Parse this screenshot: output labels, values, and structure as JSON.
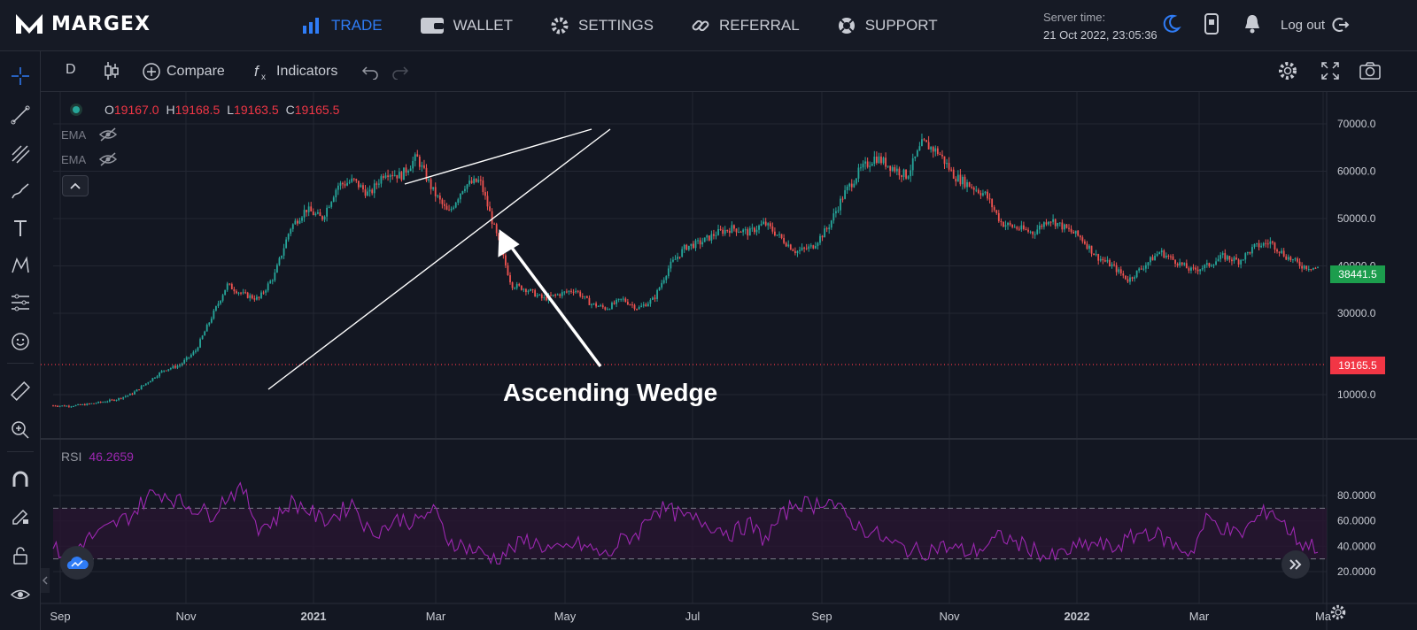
{
  "brand": {
    "name": "MARGEX"
  },
  "nav": [
    {
      "label": "TRADE",
      "icon": "bar-chart-icon",
      "active": true
    },
    {
      "label": "WALLET",
      "icon": "wallet-icon",
      "active": false
    },
    {
      "label": "SETTINGS",
      "icon": "gear-icon",
      "active": false
    },
    {
      "label": "REFERRAL",
      "icon": "link-icon",
      "active": false
    },
    {
      "label": "SUPPORT",
      "icon": "lifebuoy-icon",
      "active": false
    }
  ],
  "server": {
    "label": "Server time:",
    "time": "21 Oct 2022, 23:05:36"
  },
  "header_right": {
    "logout": "Log out"
  },
  "toolbar": {
    "interval": "D",
    "compare": "Compare",
    "indicators": "Indicators"
  },
  "legend": {
    "o_key": "O",
    "o_val": "19167.0",
    "h_key": "H",
    "h_val": "19168.5",
    "l_key": "L",
    "l_val": "19163.5",
    "c_key": "C",
    "c_val": "19165.5"
  },
  "indicators": [
    "EMA",
    "EMA"
  ],
  "rsi": {
    "label": "RSI",
    "value": "46.2659"
  },
  "price_tags": {
    "last": "38441.5",
    "current": "19165.5"
  },
  "annotation": "Ascending Wedge",
  "colors": {
    "accent": "#2f7cf6",
    "up": "#26a69a",
    "down": "#ef5350",
    "rsi": "#9c27b0",
    "last_tag": "#1c9d4d",
    "current_tag": "#f23645"
  },
  "chart_data": {
    "type": "candlestick",
    "price_axis_ticks": [
      "70000.0",
      "60000.0",
      "50000.0",
      "40000.0",
      "30000.0",
      "10000.0"
    ],
    "rsi_axis_ticks": [
      "80.0000",
      "60.0000",
      "40.0000",
      "20.0000"
    ],
    "x_ticks": [
      "Sep",
      "Nov",
      "2021",
      "Mar",
      "May",
      "Jul",
      "Sep",
      "Nov",
      "2022",
      "Mar",
      "Ma"
    ],
    "price_path": [
      10500,
      10400,
      10700,
      11200,
      11800,
      13000,
      15500,
      18000,
      19000,
      22000,
      29000,
      36000,
      34000,
      33000,
      38000,
      48000,
      52000,
      50000,
      57000,
      58000,
      55000,
      60000,
      59000,
      63000,
      56000,
      51000,
      57000,
      58000,
      47000,
      36000,
      35000,
      33000,
      34000,
      35000,
      32000,
      31000,
      33000,
      31000,
      33000,
      40000,
      44000,
      45000,
      47000,
      48000,
      47000,
      49000,
      46000,
      43000,
      44000,
      48000,
      55000,
      60000,
      63000,
      61000,
      59000,
      66000,
      64000,
      59000,
      57000,
      55000,
      49000,
      48000,
      47000,
      50000,
      48000,
      46000,
      42000,
      40000,
      37000,
      40000,
      43000,
      41000,
      39000,
      40000,
      42000,
      41000,
      44000,
      45000,
      42000,
      40000,
      39500
    ],
    "rsi_path": [
      38,
      32,
      45,
      50,
      58,
      65,
      80,
      82,
      75,
      70,
      65,
      80,
      85,
      55,
      60,
      75,
      70,
      60,
      65,
      75,
      50,
      55,
      62,
      58,
      70,
      45,
      40,
      35,
      30,
      38,
      45,
      40,
      35,
      42,
      38,
      32,
      45,
      50,
      70,
      68,
      62,
      60,
      55,
      50,
      58,
      45,
      62,
      75,
      72,
      78,
      65,
      55,
      50,
      42,
      38,
      35,
      40,
      38,
      35,
      40,
      48,
      42,
      38,
      30,
      35,
      40,
      42,
      38,
      45,
      52,
      48,
      40,
      35,
      62,
      55,
      48,
      60,
      70,
      55,
      42,
      40
    ],
    "wedge_upper": [
      [
        20000,
        57000
      ],
      [
        70000,
        68500
      ]
    ],
    "wedge_lower": [
      [
        16000,
        14000
      ],
      [
        73000,
        68000
      ]
    ],
    "reference_line": 19165.5
  }
}
